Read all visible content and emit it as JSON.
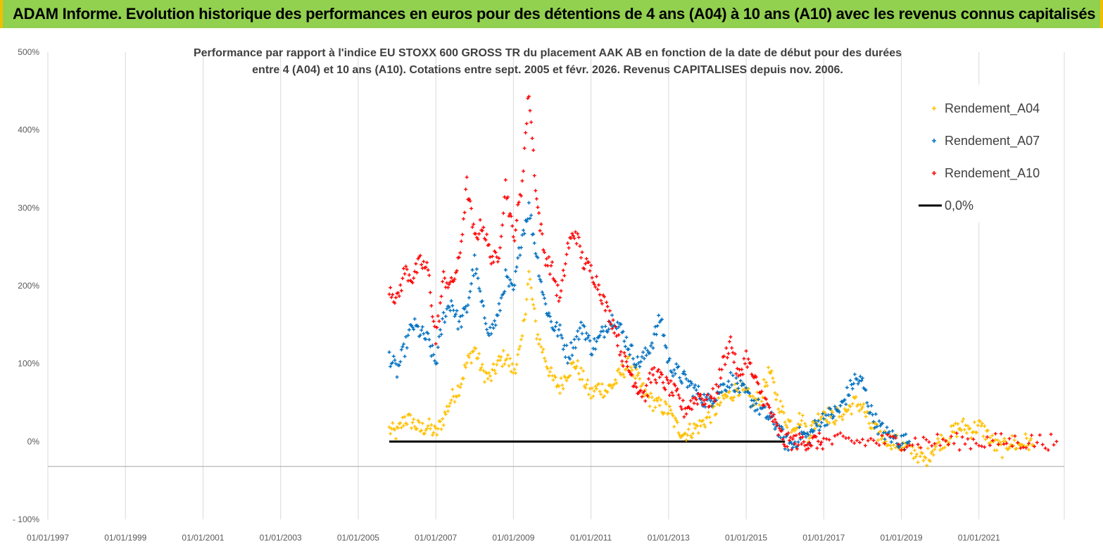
{
  "banner": {
    "title": "ADAM Informe. Evolution historique des performances en euros pour des détentions de 4 ans (A04) à 10 ans (A10) avec les revenus connus capitalisés"
  },
  "chart_data": {
    "type": "scatter",
    "title_lines": [
      "Performance par rapport à l'indice EU STOXX 600 GROSS TR  du placement AAK AB en fonction de la date de début pour des durées",
      "entre 4 (A04) et 10 ans (A10). Cotations entre sept. 2005 et févr. 2026. Revenus CAPITALISES depuis nov. 2006."
    ],
    "x_tick_labels": [
      "01/01/1997",
      "01/01/1999",
      "01/01/2001",
      "01/01/2003",
      "01/01/2005",
      "01/01/2007",
      "01/01/2009",
      "01/01/2011",
      "01/01/2013",
      "01/01/2015",
      "01/01/2017",
      "01/01/2019",
      "01/01/2021"
    ],
    "x_range_years": [
      1997.0,
      2023.2
    ],
    "y_tick_labels": [
      "- 100%",
      "0%",
      "100%",
      "200%",
      "300%",
      "400%",
      "500%"
    ],
    "ylim": [
      -100,
      500
    ],
    "legend_position": "top-right",
    "series": [
      {
        "name": "Rendement_A04",
        "color": "#ffc000",
        "marker": "+",
        "x": [
          2005.8,
          2006.0,
          2006.2,
          2006.4,
          2006.6,
          2006.8,
          2007.0,
          2007.2,
          2007.4,
          2007.6,
          2007.8,
          2008.0,
          2008.2,
          2008.4,
          2008.6,
          2008.8,
          2009.0,
          2009.2,
          2009.4,
          2009.6,
          2009.8,
          2010.0,
          2010.2,
          2010.4,
          2010.6,
          2010.8,
          2011.0,
          2011.2,
          2011.4,
          2011.6,
          2011.8,
          2012.0,
          2012.2,
          2012.4,
          2012.6,
          2012.8,
          2013.0,
          2013.2,
          2013.4,
          2013.6,
          2013.8,
          2014.0,
          2014.2,
          2014.4,
          2014.6,
          2014.8,
          2015.0,
          2015.2,
          2015.4,
          2015.6,
          2015.8,
          2016.0,
          2016.2,
          2016.4,
          2016.6,
          2016.8,
          2017.0,
          2017.2,
          2017.4,
          2017.6,
          2017.8,
          2018.0,
          2018.2,
          2018.4,
          2018.6,
          2018.8,
          2019.0,
          2019.2,
          2019.4,
          2019.6,
          2019.8,
          2020.0,
          2020.2,
          2020.4,
          2020.6,
          2020.8,
          2021.0,
          2021.2,
          2021.4,
          2021.6,
          2021.8,
          2022.0,
          2022.2,
          2022.4
        ],
        "y": [
          15,
          10,
          30,
          25,
          15,
          20,
          10,
          30,
          55,
          70,
          100,
          120,
          90,
          80,
          100,
          110,
          90,
          120,
          215,
          140,
          110,
          80,
          70,
          90,
          100,
          80,
          60,
          70,
          65,
          75,
          90,
          100,
          80,
          60,
          50,
          45,
          40,
          20,
          10,
          15,
          20,
          30,
          40,
          55,
          60,
          70,
          60,
          50,
          60,
          90,
          55,
          30,
          20,
          30,
          10,
          25,
          40,
          30,
          35,
          40,
          50,
          45,
          20,
          10,
          5,
          0,
          -5,
          -10,
          -15,
          -25,
          -10,
          0,
          5,
          15,
          20,
          15,
          20,
          10,
          -5,
          -10,
          0,
          -5,
          0,
          -5
        ]
      },
      {
        "name": "Rendement_A07",
        "color": "#0070c0",
        "marker": "+",
        "x": [
          2005.8,
          2006.0,
          2006.2,
          2006.4,
          2006.6,
          2006.8,
          2007.0,
          2007.2,
          2007.4,
          2007.6,
          2007.8,
          2008.0,
          2008.2,
          2008.4,
          2008.6,
          2008.8,
          2009.0,
          2009.2,
          2009.4,
          2009.6,
          2009.8,
          2010.0,
          2010.2,
          2010.4,
          2010.6,
          2010.8,
          2011.0,
          2011.2,
          2011.4,
          2011.6,
          2011.8,
          2012.0,
          2012.2,
          2012.4,
          2012.6,
          2012.8,
          2013.0,
          2013.2,
          2013.4,
          2013.6,
          2013.8,
          2014.0,
          2014.2,
          2014.4,
          2014.6,
          2014.8,
          2015.0,
          2015.2,
          2015.4,
          2015.6,
          2015.8,
          2016.0,
          2016.2,
          2016.4,
          2016.6,
          2016.8,
          2017.0,
          2017.2,
          2017.4,
          2017.6,
          2017.8,
          2018.0,
          2018.2,
          2018.4,
          2018.6,
          2018.8,
          2019.0,
          2019.2
        ],
        "y": [
          110,
          90,
          120,
          150,
          140,
          130,
          100,
          160,
          180,
          150,
          170,
          230,
          170,
          140,
          160,
          210,
          190,
          260,
          300,
          240,
          180,
          150,
          140,
          110,
          130,
          150,
          120,
          130,
          150,
          160,
          140,
          120,
          100,
          110,
          130,
          160,
          100,
          90,
          80,
          70,
          60,
          50,
          60,
          70,
          80,
          70,
          60,
          50,
          40,
          30,
          20,
          0,
          -5,
          10,
          5,
          20,
          30,
          35,
          40,
          60,
          80,
          75,
          40,
          20,
          10,
          5,
          0,
          0
        ]
      },
      {
        "name": "Rendement_A10",
        "color": "#ff0000",
        "marker": "+",
        "x": [
          2005.8,
          2006.0,
          2006.2,
          2006.4,
          2006.6,
          2006.8,
          2007.0,
          2007.2,
          2007.4,
          2007.6,
          2007.8,
          2008.0,
          2008.2,
          2008.4,
          2008.6,
          2008.8,
          2009.0,
          2009.2,
          2009.4,
          2009.6,
          2009.8,
          2010.0,
          2010.2,
          2010.4,
          2010.6,
          2010.8,
          2011.0,
          2011.2,
          2011.4,
          2011.6,
          2011.8,
          2012.0,
          2012.2,
          2012.4,
          2012.6,
          2012.8,
          2013.0,
          2013.2,
          2013.4,
          2013.6,
          2013.8,
          2014.0,
          2014.2,
          2014.4,
          2014.6,
          2014.8,
          2015.0,
          2015.2,
          2015.4,
          2015.6,
          2015.8,
          2016.0,
          2016.2,
          2016.4,
          2016.6,
          2016.8,
          2017.0,
          2017.5,
          2018.0,
          2018.5,
          2019.0,
          2019.5,
          2020.0,
          2020.5,
          2021.0,
          2021.5,
          2022.0,
          2022.5,
          2023.0
        ],
        "y": [
          200,
          180,
          220,
          210,
          230,
          220,
          130,
          210,
          200,
          230,
          330,
          260,
          280,
          240,
          230,
          330,
          260,
          320,
          450,
          310,
          240,
          220,
          180,
          250,
          270,
          230,
          220,
          200,
          170,
          150,
          110,
          90,
          70,
          60,
          90,
          80,
          70,
          60,
          40,
          50,
          60,
          50,
          60,
          100,
          130,
          80,
          110,
          80,
          60,
          40,
          15,
          0,
          0,
          0,
          0,
          0,
          0,
          0,
          0,
          0,
          0,
          0,
          0,
          0,
          0,
          0,
          0,
          0,
          0
        ]
      },
      {
        "name": "0,0%",
        "color": "#000000",
        "marker": "line",
        "x": [
          2005.8,
          2016.0
        ],
        "y": [
          0,
          0
        ]
      }
    ]
  }
}
